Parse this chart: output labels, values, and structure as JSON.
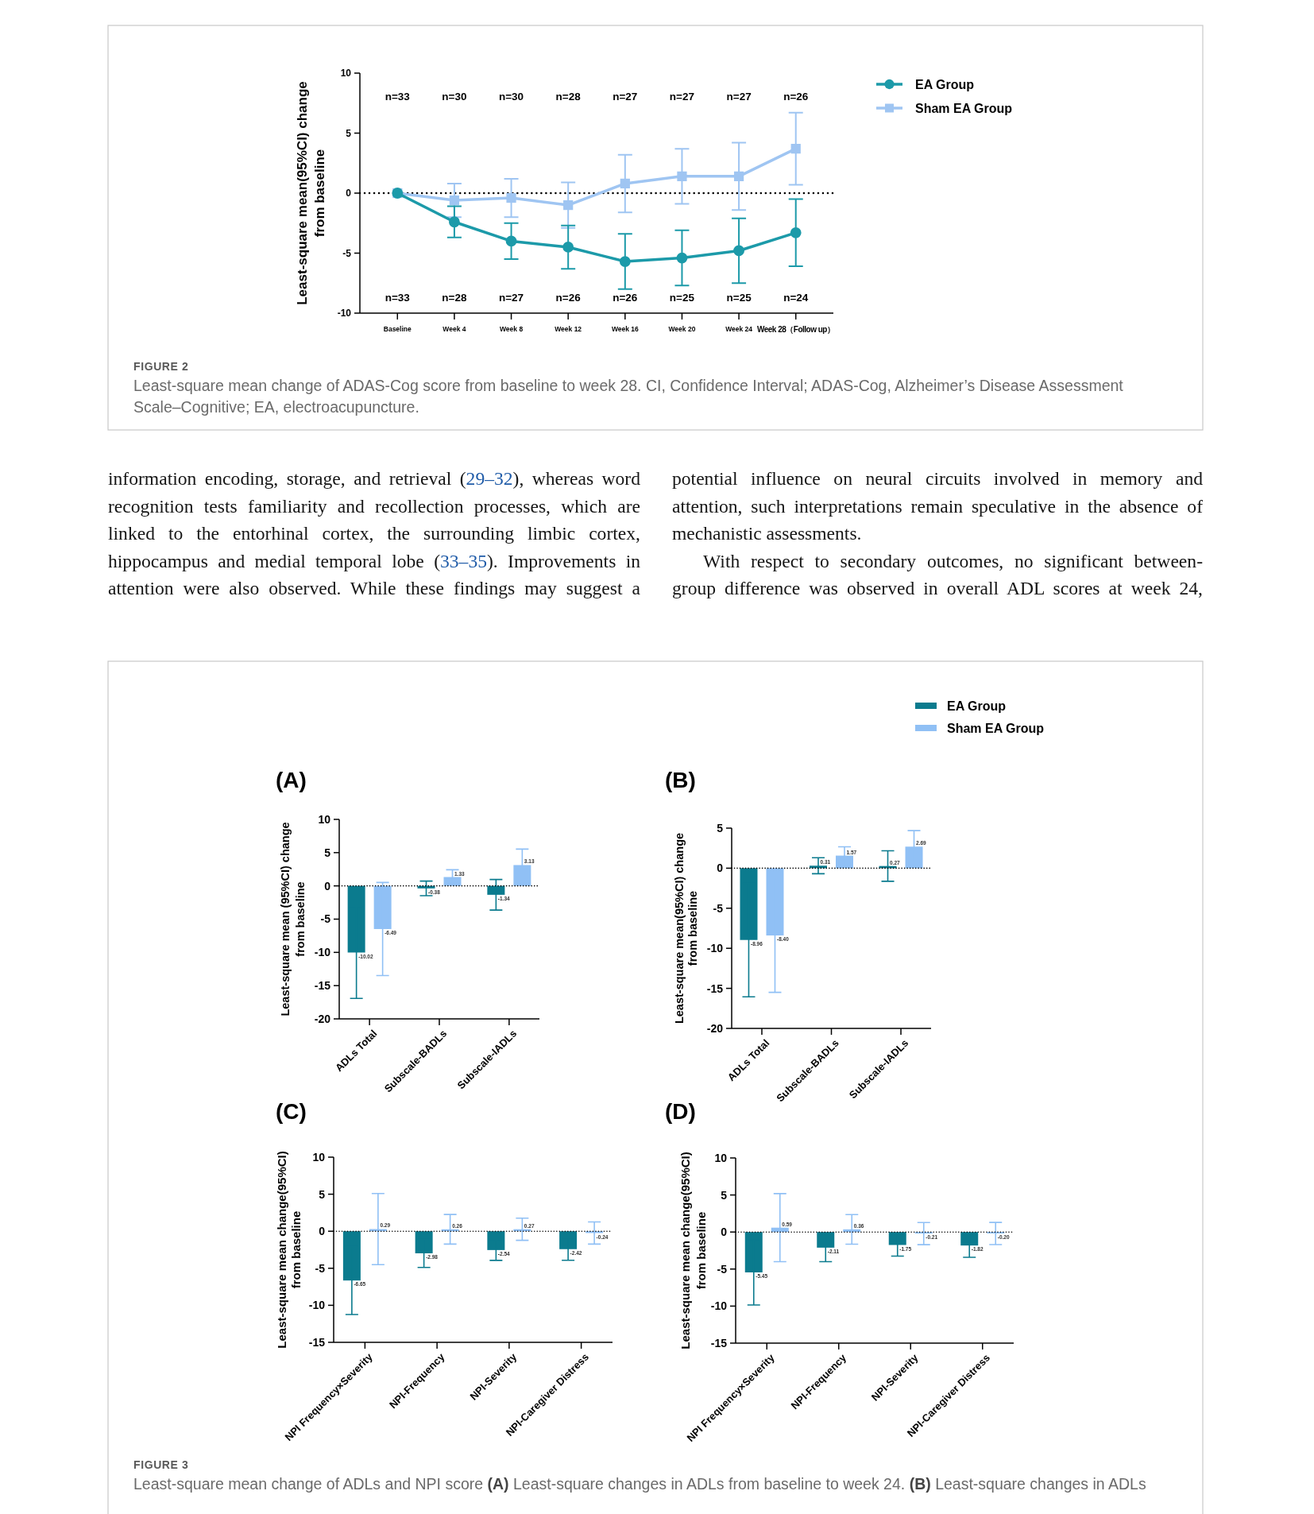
{
  "chart_data": [
    {
      "type": "line",
      "categories": [
        "Baseline",
        "Week 4",
        "Week 8",
        "Week 12",
        "Week 16",
        "Week 20",
        "Week 24",
        "Week 28（Follow up）"
      ],
      "ylabel": "Least-square mean(95%CI) change\nfrom baseline",
      "ylim": [
        -10,
        10
      ],
      "yticks": [
        -10,
        -5,
        0,
        5,
        10
      ],
      "legend": "top right",
      "series": [
        {
          "name": "EA Group",
          "color": "#1c9aa9",
          "marker": "circle",
          "values": [
            0,
            -2.4,
            -4.0,
            -4.5,
            -5.7,
            -5.4,
            -4.8,
            -3.3
          ],
          "errors": [
            null,
            1.3,
            1.5,
            1.8,
            2.3,
            2.3,
            2.7,
            2.8
          ]
        },
        {
          "name": "Sham EA Group",
          "color": "#9fc5f2",
          "marker": "square",
          "values": [
            0,
            -0.6,
            -0.4,
            -1.0,
            0.8,
            1.4,
            1.4,
            3.7
          ],
          "errors": [
            null,
            1.4,
            1.6,
            1.9,
            2.4,
            2.3,
            2.8,
            3.0
          ]
        }
      ],
      "ref_lines": [
        {
          "axis": "y",
          "value": 0,
          "line_style": "dotted",
          "color": "#000000"
        }
      ],
      "annotations": [
        "n=33",
        "n=30",
        "n=30",
        "n=28",
        "n=27",
        "n=27",
        "n=27",
        "n=26",
        "n=33",
        "n=28",
        "n=27",
        "n=26",
        "n=26",
        "n=25",
        "n=25",
        "n=24",
        "FIGURE 2",
        "Least-square mean change of ADAS-Cog score from baseline to week 28. CI, Confidence Interval; ADAS-Cog, Alzheimer’s Disease Assessment Scale–Cognitive; EA, electroacupuncture."
      ]
    },
    {
      "type": "other",
      "annotations": [
        "information encoding, storage, and retrieval (29–32), whereas word recognition tests familiarity and recollection processes, which are linked to the entorhinal cortex, the surrounding limbic cortex, hippocampus and medial temporal lobe (33–35). Improvements in attention were also observed. While these findings may suggest a",
        "potential influence on neural circuits involved in memory and attention, such interpretations remain speculative in the absence of mechanistic assessments.",
        "With respect to secondary outcomes, no significant between-group difference was observed in overall ADL scores at week 24,"
      ]
    },
    {
      "type": "bar",
      "title": "(A)",
      "categories": [
        "ADLs Total",
        "Subscale-BADLs",
        "Subscale-IADLs"
      ],
      "ylabel": "Least-square mean (95%CI) change\nfrom baseline",
      "ylim": [
        -20,
        10
      ],
      "yticks": [
        -20,
        -15,
        -10,
        -5,
        0,
        5,
        10
      ],
      "legend": "top right",
      "series": [
        {
          "name": "EA Group",
          "color": "#0b7b8e",
          "values": [
            -10.02,
            -0.38,
            -1.34
          ],
          "errors": [
            6.9,
            1.1,
            2.3
          ],
          "value_labels": [
            "-10.02",
            "-0.38",
            "-1.34"
          ]
        },
        {
          "name": "Sham EA Group",
          "color": "#90c0f5",
          "values": [
            -6.49,
            1.33,
            3.13
          ],
          "errors": [
            7.0,
            1.1,
            2.4
          ],
          "value_labels": [
            "-6.49",
            "1.33",
            "3.13"
          ]
        }
      ],
      "ref_lines": [
        {
          "axis": "y",
          "value": 0,
          "line_style": "dotted",
          "color": "#000000"
        }
      ]
    },
    {
      "type": "bar",
      "title": "(B)",
      "categories": [
        "ADLs Total",
        "Subscale-BADLs",
        "Subscale-IADLs"
      ],
      "ylabel": "Least-square mean(95%CI) change\nfrom baseline",
      "ylim": [
        -20,
        5
      ],
      "yticks": [
        -20,
        -15,
        -10,
        -5,
        0,
        5
      ],
      "series": [
        {
          "color": "#0b7b8e",
          "values": [
            -8.96,
            0.31,
            0.27
          ],
          "errors": [
            7.1,
            1.0,
            1.9
          ],
          "value_labels": [
            "-8.96",
            "0.31",
            "0.27"
          ]
        },
        {
          "color": "#90c0f5",
          "values": [
            -8.4,
            1.57,
            2.69
          ],
          "errors": [
            7.1,
            1.1,
            2.0
          ],
          "value_labels": [
            "-8.40",
            "1.57",
            "2.69"
          ]
        }
      ],
      "ref_lines": [
        {
          "axis": "y",
          "value": 0,
          "line_style": "dotted",
          "color": "#000000"
        }
      ]
    },
    {
      "type": "bar",
      "title": "(C)",
      "categories": [
        "NPI Frequency×Severity",
        "NPI-Frequency",
        "NPI-Severity",
        "NPI-Caregiver Distress"
      ],
      "ylabel": "Least-square mean change(95%CI)\nfrom baseline",
      "ylim": [
        -15,
        10
      ],
      "yticks": [
        -15,
        -10,
        -5,
        0,
        5,
        10
      ],
      "series": [
        {
          "color": "#0b7b8e",
          "values": [
            -6.65,
            -2.98,
            -2.54,
            -2.42
          ],
          "errors": [
            4.6,
            1.9,
            1.4,
            1.5
          ],
          "value_labels": [
            "-6.65",
            "-2.98",
            "-2.54",
            "-2.42"
          ]
        },
        {
          "color": "#90c0f5",
          "values": [
            0.29,
            0.26,
            0.27,
            -0.24
          ],
          "errors": [
            4.8,
            2.0,
            1.5,
            1.5
          ],
          "value_labels": [
            "0.29",
            "0.26",
            "0.27",
            "-0.24"
          ]
        }
      ],
      "ref_lines": [
        {
          "axis": "y",
          "value": 0,
          "line_style": "dotted",
          "color": "#000000"
        }
      ]
    },
    {
      "type": "bar",
      "title": "(D)",
      "categories": [
        "NPI Frequency×Severity",
        "NPI-Frequency",
        "NPI-Severity",
        "NPI-Caregiver Distress"
      ],
      "ylabel": "Least-square mean change(95%CI)\nfrom baseline",
      "ylim": [
        -15,
        10
      ],
      "yticks": [
        -15,
        -10,
        -5,
        0,
        5,
        10
      ],
      "series": [
        {
          "color": "#0b7b8e",
          "values": [
            -5.45,
            -2.11,
            -1.75,
            -1.82
          ],
          "errors": [
            4.4,
            1.9,
            1.5,
            1.6
          ],
          "value_labels": [
            "-5.45",
            "-2.11",
            "-1.75",
            "-1.82"
          ]
        },
        {
          "color": "#90c0f5",
          "values": [
            0.59,
            0.36,
            -0.21,
            -0.2
          ],
          "errors": [
            4.6,
            2.0,
            1.5,
            1.5
          ],
          "value_labels": [
            "0.59",
            "0.36",
            "-0.21",
            "-0.20"
          ]
        }
      ],
      "ref_lines": [
        {
          "axis": "y",
          "value": 0,
          "line_style": "dotted",
          "color": "#000000"
        }
      ],
      "annotations": [
        "FIGURE 3",
        "Least-square mean change of ADLs and NPI score (A) Least-square changes in ADLs from baseline to week 24. (B) Least-square changes in ADLs"
      ]
    }
  ]
}
